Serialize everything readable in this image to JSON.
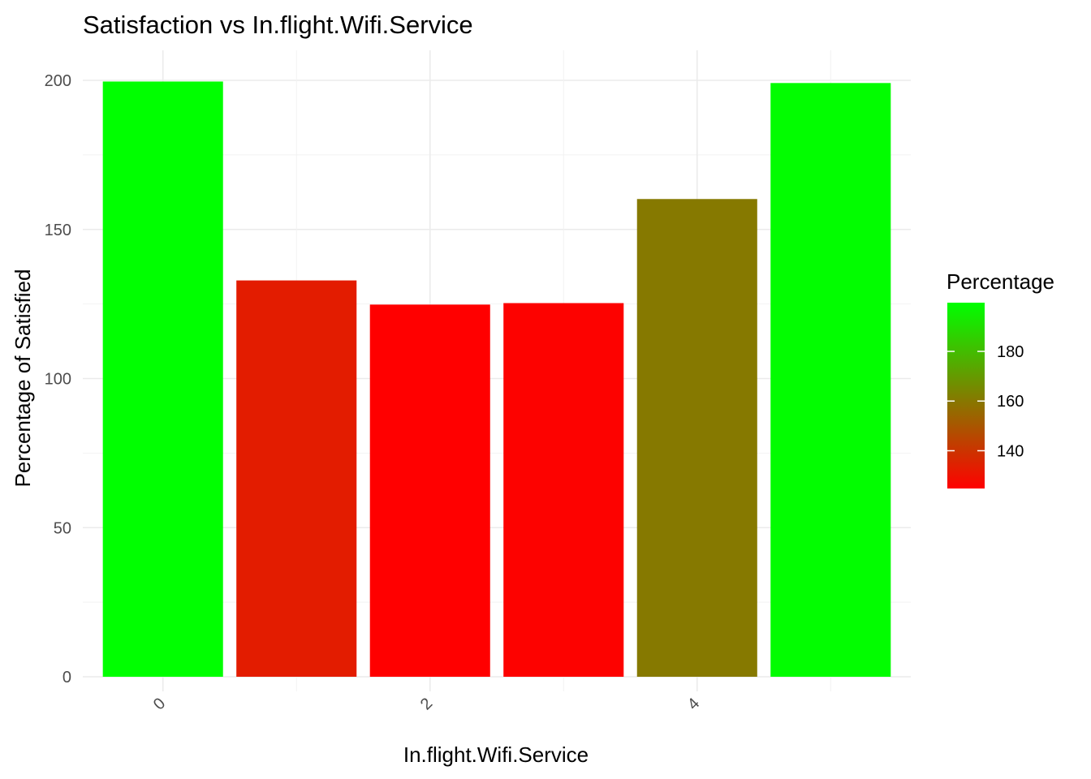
{
  "chart_data": {
    "type": "bar",
    "title": "Satisfaction vs In.flight.Wifi.Service",
    "xlabel": "In.flight.Wifi.Service",
    "ylabel": "Percentage of Satisfied",
    "categories": [
      "0",
      "1",
      "2",
      "3",
      "4",
      "5"
    ],
    "x_tick_labels": [
      "0",
      "2",
      "4"
    ],
    "values": [
      199.6,
      132.9,
      124.8,
      125.3,
      160.2,
      199.1
    ],
    "ylim": [
      0,
      200
    ],
    "y_ticks": [
      0,
      50,
      100,
      150,
      200
    ],
    "grid": true,
    "legend": {
      "title": "Percentage",
      "position": "right",
      "ticks": [
        140,
        160,
        180
      ],
      "range": [
        124.8,
        199.6
      ],
      "low_color": "#ff0000",
      "high_color": "#00ff00"
    }
  }
}
